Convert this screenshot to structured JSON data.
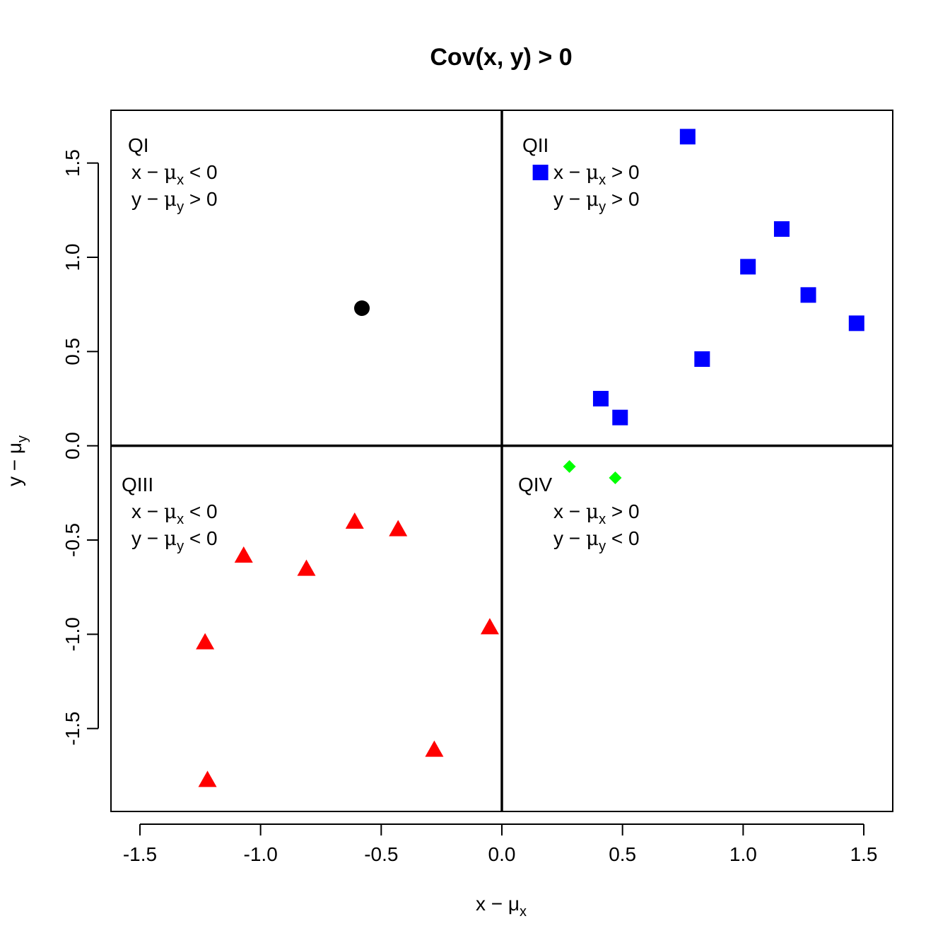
{
  "chart_data": {
    "type": "scatter",
    "title": "Cov(x, y) > 0",
    "xlabel": "x − μ",
    "xlabel_sub": "x",
    "ylabel": "y − μ",
    "ylabel_sub": "y",
    "xlim": [
      -1.62,
      1.62
    ],
    "ylim": [
      -1.94,
      1.78
    ],
    "xticks": [
      -1.5,
      -1.0,
      -0.5,
      0.0,
      0.5,
      1.0,
      1.5
    ],
    "xtick_labels": [
      "-1.5",
      "-1.0",
      "-0.5",
      "0.0",
      "0.5",
      "1.0",
      "1.5"
    ],
    "yticks": [
      -1.5,
      -1.0,
      -0.5,
      0.0,
      0.5,
      1.0,
      1.5
    ],
    "ytick_labels": [
      "-1.5",
      "-1.0",
      "-0.5",
      "0.0",
      "0.5",
      "1.0",
      "1.5"
    ],
    "reference_lines": {
      "x": 0,
      "y": 0
    },
    "series": [
      {
        "marker": "circle",
        "color": "#000000",
        "points": [
          [
            -0.58,
            0.73
          ]
        ]
      },
      {
        "marker": "square",
        "color": "#0000ff",
        "points": [
          [
            0.16,
            1.45
          ],
          [
            0.77,
            1.64
          ],
          [
            1.16,
            1.15
          ],
          [
            1.02,
            0.95
          ],
          [
            1.27,
            0.8
          ],
          [
            1.47,
            0.65
          ],
          [
            0.83,
            0.46
          ],
          [
            0.41,
            0.25
          ],
          [
            0.49,
            0.15
          ]
        ]
      },
      {
        "marker": "triangle",
        "color": "#ff0000",
        "points": [
          [
            -0.61,
            -0.41
          ],
          [
            -0.43,
            -0.45
          ],
          [
            -1.07,
            -0.59
          ],
          [
            -0.81,
            -0.66
          ],
          [
            -0.05,
            -0.97
          ],
          [
            -1.23,
            -1.05
          ],
          [
            -0.28,
            -1.62
          ],
          [
            -1.22,
            -1.78
          ]
        ]
      },
      {
        "marker": "diamond",
        "color": "#00ff00",
        "points": [
          [
            0.28,
            -0.11
          ],
          [
            0.47,
            -0.17
          ]
        ]
      }
    ],
    "quadrants": [
      {
        "name": "QI",
        "lines": [
          {
            "v": "x",
            "op": "<"
          },
          {
            "v": "y",
            "op": ">"
          }
        ]
      },
      {
        "name": "QII",
        "lines": [
          {
            "v": "x",
            "op": ">"
          },
          {
            "v": "y",
            "op": ">"
          }
        ]
      },
      {
        "name": "QIII",
        "lines": [
          {
            "v": "x",
            "op": "<"
          },
          {
            "v": "y",
            "op": "<"
          }
        ]
      },
      {
        "name": "QIV",
        "lines": [
          {
            "v": "x",
            "op": ">"
          },
          {
            "v": "y",
            "op": "<"
          }
        ]
      }
    ]
  }
}
